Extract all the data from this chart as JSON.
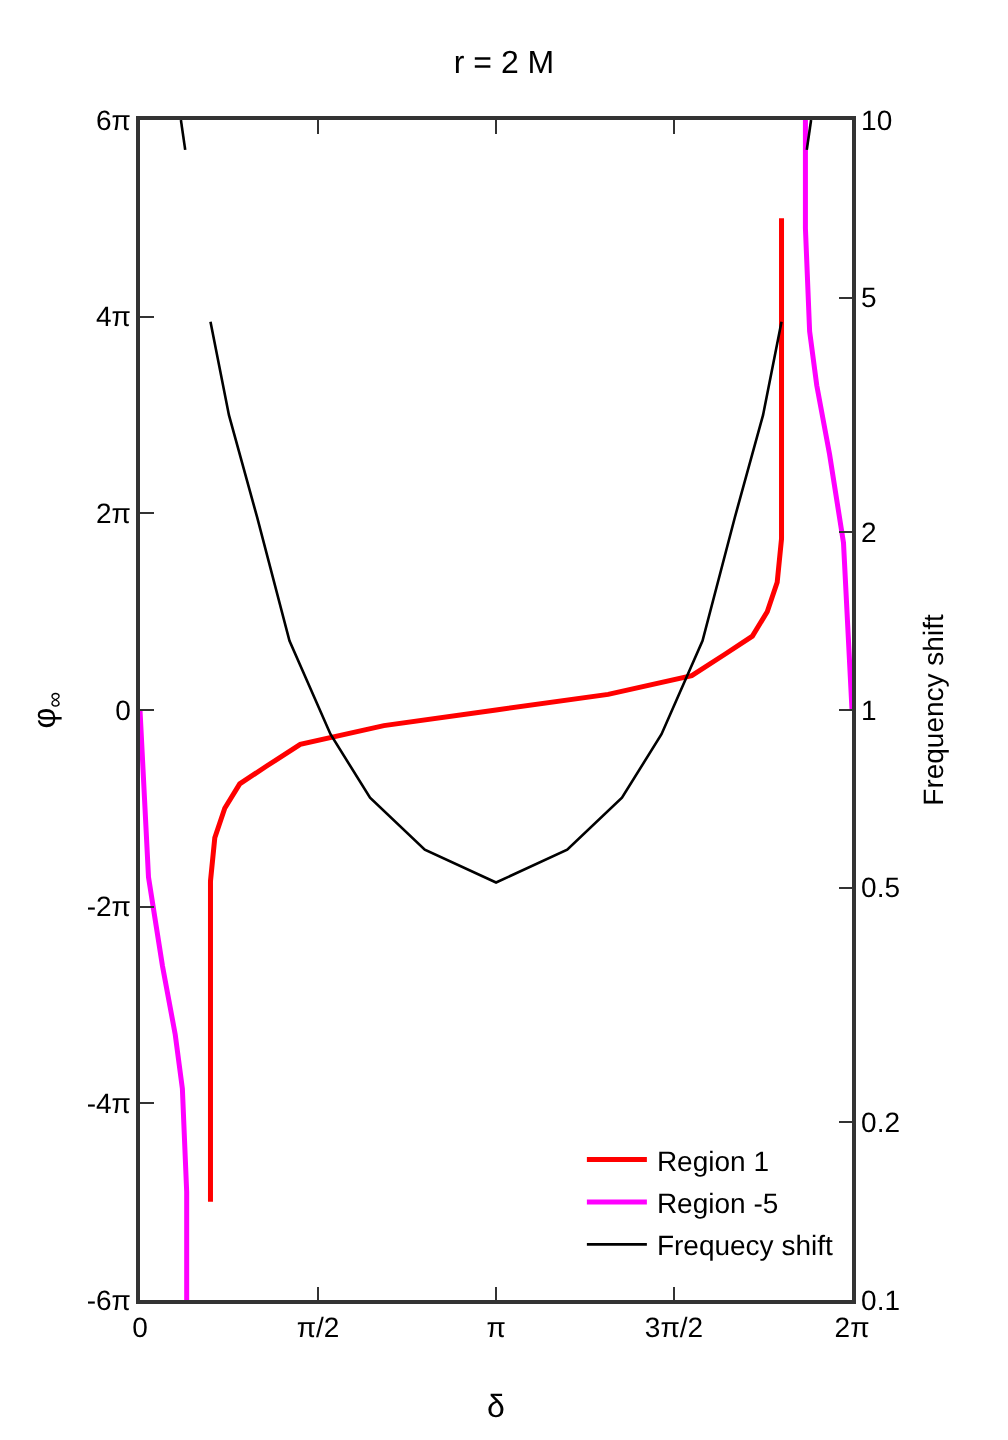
{
  "chart_data": {
    "type": "line",
    "title": "r = 2 M",
    "xlabel": "δ",
    "ylabel": "φ$_{∞}$",
    "y2label": "Frequency shift",
    "xlim": [
      0,
      6.283
    ],
    "xticks": [
      0,
      {
        "value": 1.571,
        "label": "π/2"
      },
      {
        "value": 3.142,
        "label": "π"
      },
      {
        "value": 4.712,
        "label": "3π/2"
      },
      {
        "value": 6.283,
        "label": "2π"
      }
    ],
    "ylim": [
      -18.85,
      18.85
    ],
    "yticks": [
      {
        "value": -18.85,
        "label": "-6π"
      },
      {
        "value": -12.566,
        "label": "-4π"
      },
      {
        "value": -6.283,
        "label": "-2π"
      },
      0,
      {
        "value": 6.283,
        "label": "2π"
      },
      {
        "value": 12.566,
        "label": "4π"
      },
      {
        "value": 18.85,
        "label": "6π"
      }
    ],
    "y2lim": [
      0.1,
      10
    ],
    "y2ticks": [
      0.1,
      0.2,
      0.5,
      1,
      2,
      5,
      10
    ],
    "log": "y2",
    "legend": "bottom right",
    "series": [
      {
        "name": "Region 1",
        "color": "#ff0000",
        "x": [
          0.622,
          0.622,
          0.66,
          0.748,
          0.88,
          1.118,
          1.414,
          2.152,
          3.142,
          4.131,
          4.869,
          5.165,
          5.404,
          5.535,
          5.623,
          5.661,
          5.661
        ],
        "values": [
          -15.71,
          -5.47,
          -4.08,
          -3.14,
          -2.36,
          -1.79,
          -1.1,
          -0.5,
          0,
          0.5,
          1.1,
          1.79,
          2.36,
          3.14,
          4.08,
          5.47,
          15.71
        ]
      },
      {
        "name": "Region -5",
        "color": "#ff00ff",
        "x": [
          0,
          0.075,
          0.198,
          0.311,
          0.374,
          0.412,
          0.412,
          3.142,
          5.872,
          5.872,
          5.909,
          5.972,
          6.085,
          6.208,
          6.283
        ],
        "values": [
          0,
          -5.34,
          -8.17,
          -10.37,
          -12.1,
          -15.39,
          -18.85,
          null,
          18.85,
          15.39,
          12.1,
          10.37,
          8.17,
          5.34,
          0
        ]
      },
      {
        "name": "Frequecy shift",
        "color": "#000000",
        "axis": "y2",
        "x": [
          0.361,
          0.399,
          0.5,
          0.622,
          0.785,
          1.034,
          1.319,
          1.681,
          2.03,
          2.513,
          3.142,
          3.77,
          4.253,
          4.602,
          4.964,
          5.249,
          5.498,
          5.661,
          5.78,
          5.884,
          5.922
        ],
        "values": [
          10,
          8.9,
          null,
          4.55,
          3.16,
          2.12,
          1.31,
          0.91,
          0.71,
          0.58,
          0.51,
          0.58,
          0.71,
          0.91,
          1.31,
          2.12,
          3.16,
          4.55,
          null,
          8.9,
          10
        ]
      }
    ]
  }
}
